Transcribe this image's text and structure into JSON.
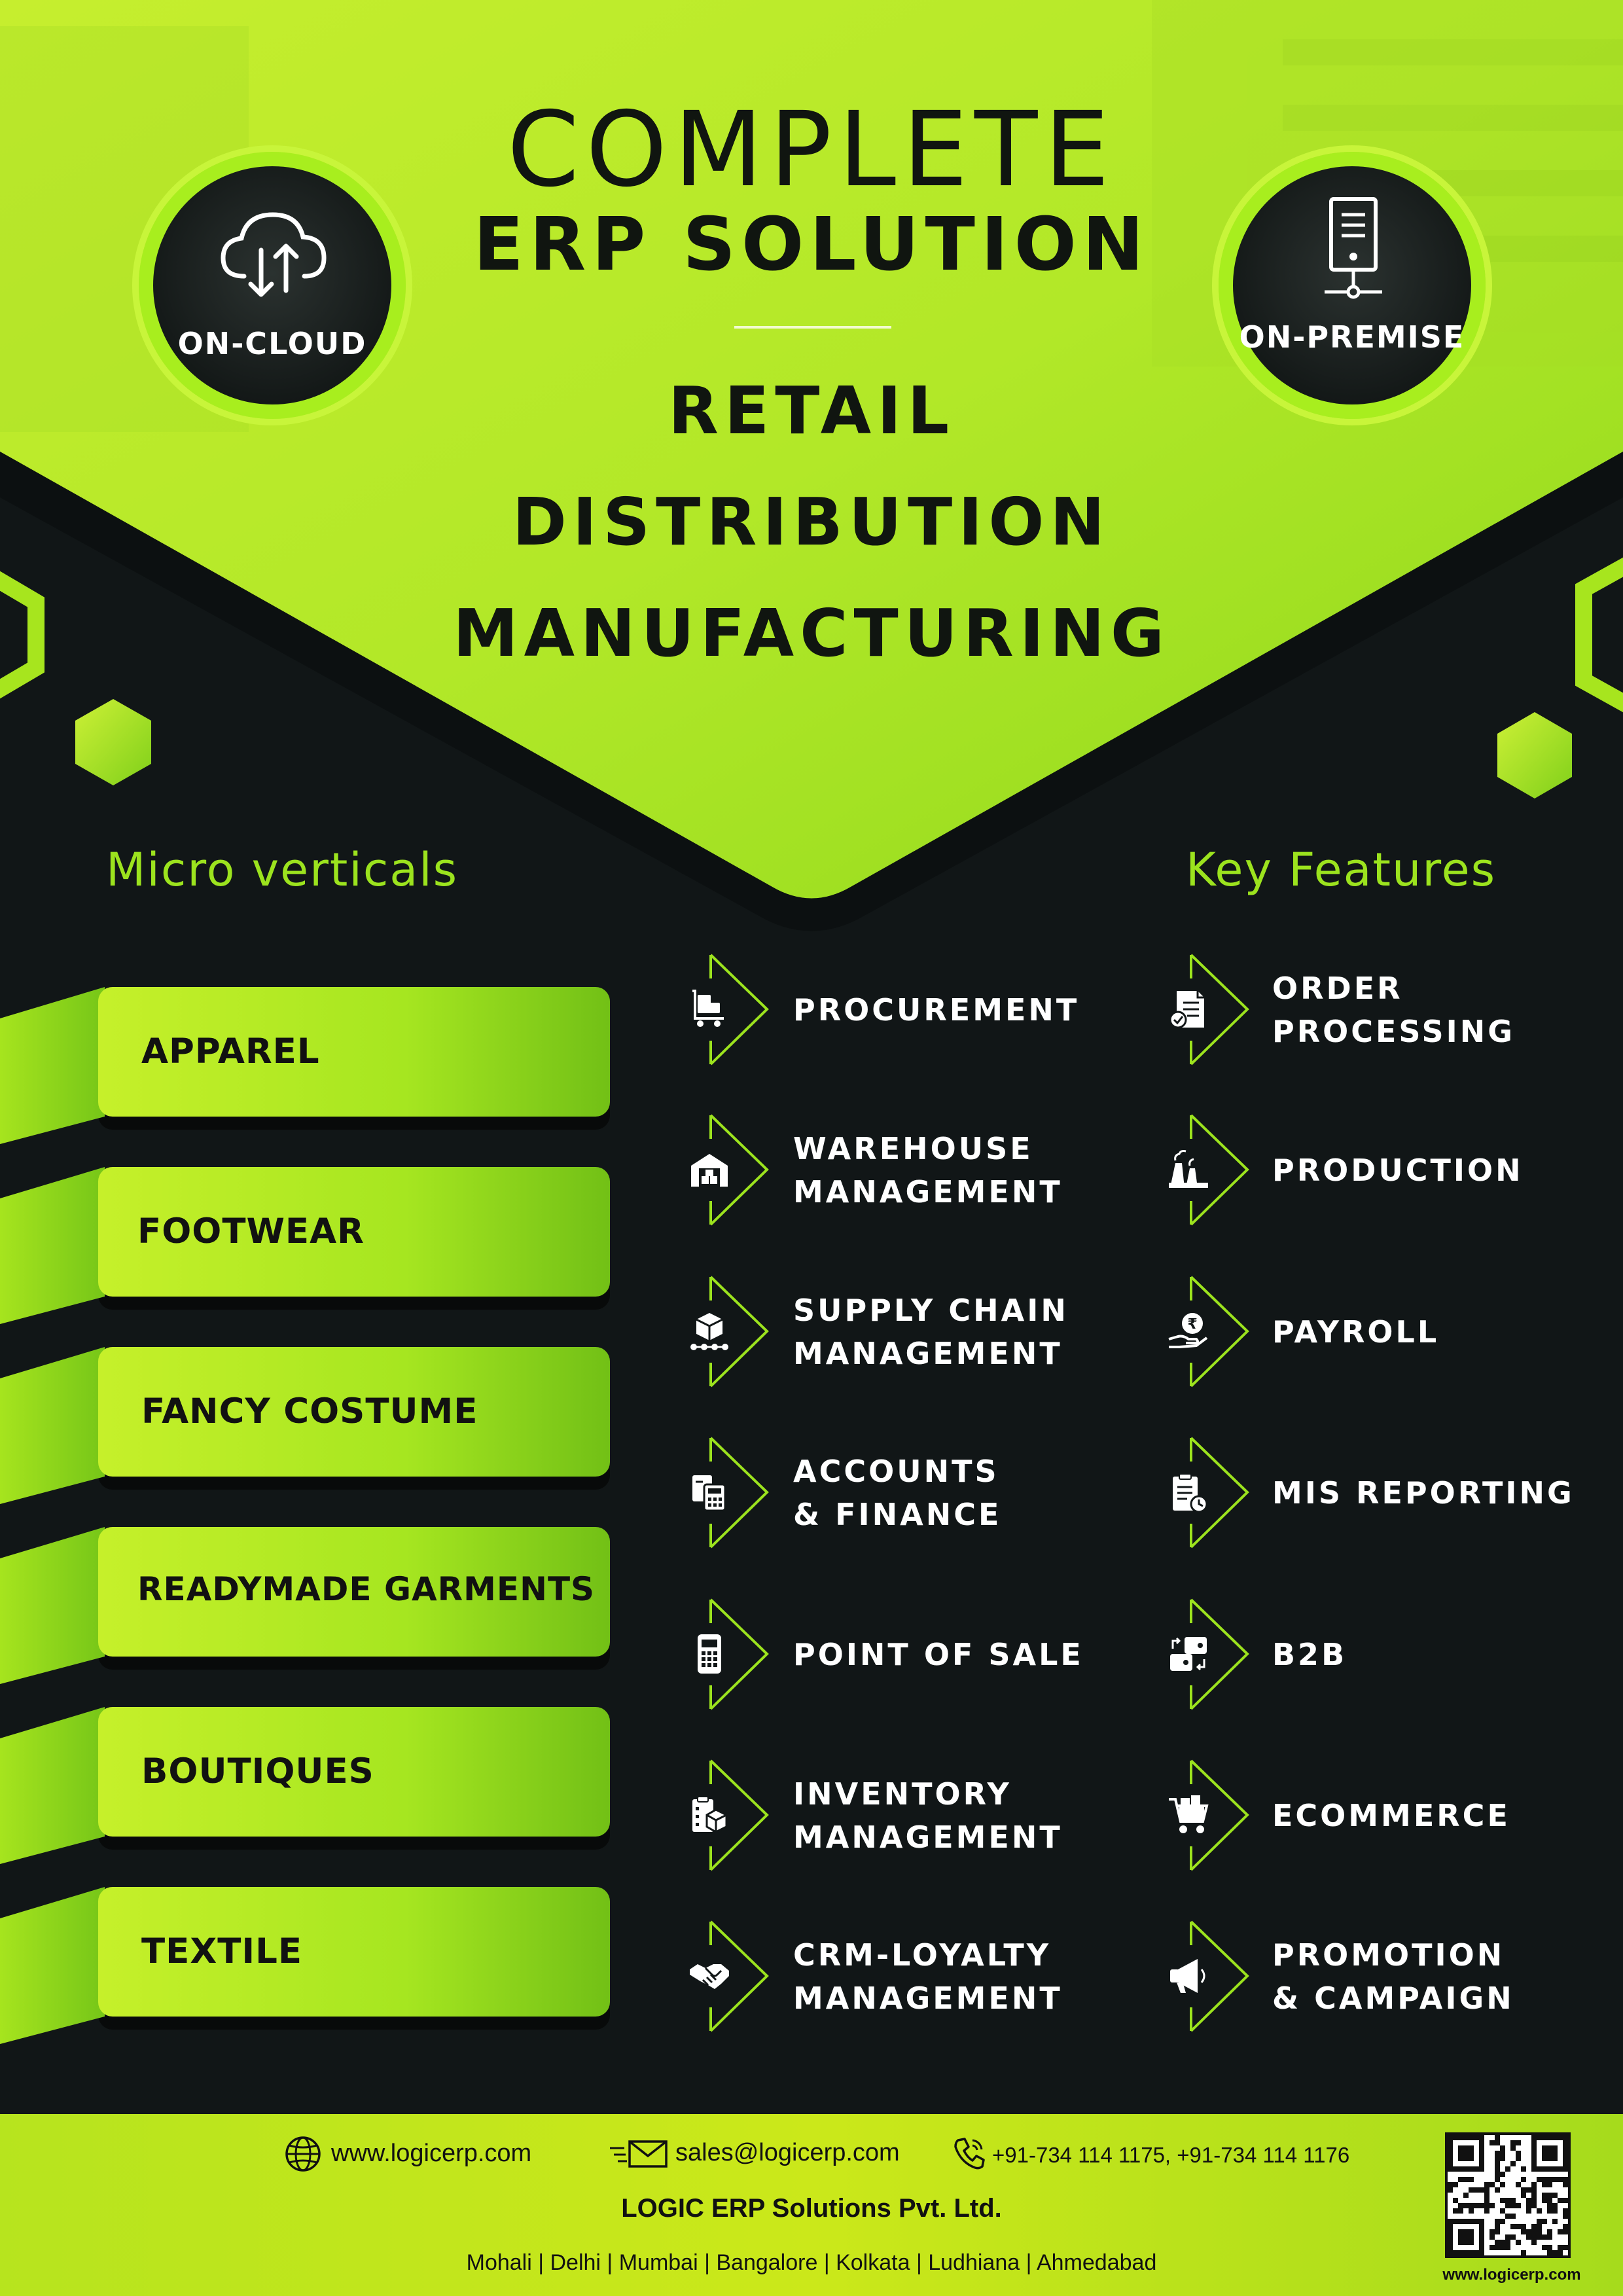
{
  "header": {
    "title_line1": "COMPLETE",
    "title_line2": "ERP SOLUTION",
    "segments": [
      "RETAIL",
      "DISTRIBUTION",
      "MANUFACTURING"
    ]
  },
  "badges": {
    "left": {
      "label": "ON-CLOUD",
      "icon": "cloud-sync-icon"
    },
    "right": {
      "label": "ON-PREMISE",
      "icon": "server-icon"
    }
  },
  "sections": {
    "micro_verticals": "Micro verticals",
    "key_features": "Key Features"
  },
  "micro_verticals": [
    "APPAREL",
    "FOOTWEAR",
    "FANCY COSTUME",
    "READYMADE GARMENTS",
    "BOUTIQUES",
    "TEXTILE"
  ],
  "features_left": [
    {
      "lines": [
        "PROCUREMENT"
      ],
      "icon": "trolley-icon"
    },
    {
      "lines": [
        "WAREHOUSE",
        "MANAGEMENT"
      ],
      "icon": "warehouse-icon"
    },
    {
      "lines": [
        "SUPPLY CHAIN",
        "MANAGEMENT"
      ],
      "icon": "supply-chain-icon"
    },
    {
      "lines": [
        "ACCOUNTS",
        "& FINANCE"
      ],
      "icon": "calculator-docs-icon"
    },
    {
      "lines": [
        "POINT OF SALE"
      ],
      "icon": "pos-terminal-icon"
    },
    {
      "lines": [
        "INVENTORY",
        "MANAGEMENT"
      ],
      "icon": "inventory-icon"
    },
    {
      "lines": [
        "CRM-LOYALTY",
        "MANAGEMENT"
      ],
      "icon": "handshake-icon"
    }
  ],
  "features_right": [
    {
      "lines": [
        "ORDER",
        "PROCESSING"
      ],
      "icon": "order-doc-icon"
    },
    {
      "lines": [
        "PRODUCTION"
      ],
      "icon": "factory-icon"
    },
    {
      "lines": [
        "PAYROLL"
      ],
      "icon": "rupee-hand-icon"
    },
    {
      "lines": [
        "MIS REPORTING"
      ],
      "icon": "report-clipboard-icon"
    },
    {
      "lines": [
        "B2B"
      ],
      "icon": "wallet-exchange-icon"
    },
    {
      "lines": [
        "ECOMMERCE"
      ],
      "icon": "cart-icon"
    },
    {
      "lines": [
        "PROMOTION",
        "& CAMPAIGN"
      ],
      "icon": "megaphone-icon"
    }
  ],
  "footer": {
    "website": "www.logicerp.com",
    "email": "sales@logicerp.com",
    "phone": "+91-734 114 1175, +91-734 114 1176",
    "company": "LOGIC ERP Solutions Pvt. Ltd.",
    "cities": "Mohali | Delhi | Mumbai | Bangalore | Kolkata | Ludhiana | Ahmedabad",
    "qr_url": "www.logicerp.com"
  },
  "colors": {
    "accent": "#9ce31e",
    "dark": "#111617",
    "ribbon_light": "#c6f02a",
    "ribbon_dark": "#76c416"
  }
}
